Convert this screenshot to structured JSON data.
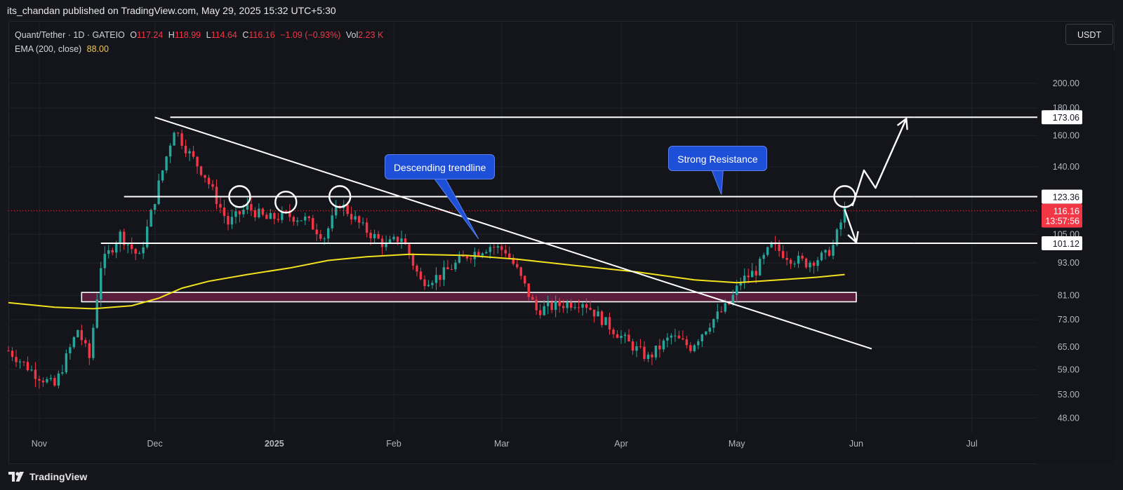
{
  "header": {
    "published": "its_chandan published on TradingView.com, May 29, 2025 15:32 UTC+5:30"
  },
  "legend": {
    "symbol": "Quant/Tether · 1D · GATEIO",
    "o_label": "O",
    "o": "117.24",
    "h_label": "H",
    "h": "118.99",
    "l_label": "L",
    "l": "114.64",
    "c_label": "C",
    "c": "116.16",
    "change": "−1.09 (−0.93%)",
    "vol_label": "Vol",
    "vol": "2.23 K",
    "ema_label": "EMA (200, close)",
    "ema": "88.00"
  },
  "currency_button": "USDT",
  "footer": {
    "brand": "TradingView"
  },
  "colors": {
    "up": "#26a69a",
    "down": "#f23645",
    "ema": "#f2e21d",
    "callout": "#1e4fd8",
    "zone": "#5a1e3c"
  },
  "chart_data": {
    "type": "candlestick",
    "title": "Quant/Tether · 1D · GATEIO",
    "y_scale": "log",
    "ylim": [
      45,
      230
    ],
    "xlim": [
      "2024-10-24",
      "2025-07-18"
    ],
    "y_ticks": [
      "200.00",
      "180.00",
      "160.00",
      "140.00",
      "105.00",
      "93.00",
      "81.00",
      "73.00",
      "65.00",
      "59.00",
      "53.00",
      "48.00"
    ],
    "x_ticks": [
      {
        "label": "Nov",
        "date": "2024-11-01",
        "bold": false
      },
      {
        "label": "Dec",
        "date": "2024-12-01",
        "bold": false
      },
      {
        "label": "2025",
        "date": "2025-01-01",
        "bold": true
      },
      {
        "label": "Feb",
        "date": "2025-02-01",
        "bold": false
      },
      {
        "label": "Mar",
        "date": "2025-03-01",
        "bold": false
      },
      {
        "label": "Apr",
        "date": "2025-04-01",
        "bold": false
      },
      {
        "label": "May",
        "date": "2025-05-01",
        "bold": false
      },
      {
        "label": "Jun",
        "date": "2025-06-01",
        "bold": false
      },
      {
        "label": "Jul",
        "date": "2025-07-01",
        "bold": false
      }
    ],
    "price_badges": [
      {
        "label": "173.06",
        "value": 173.06
      },
      {
        "label": "123.36",
        "value": 123.36
      },
      {
        "label": "101.12",
        "value": 101.12
      }
    ],
    "last_price": {
      "label": "116.16",
      "countdown": "13:57:56",
      "value": 116.16
    },
    "anchor_path": [
      [
        "2024-10-24",
        64
      ],
      [
        "2024-10-31",
        58
      ],
      [
        "2024-11-05",
        55
      ],
      [
        "2024-11-11",
        70
      ],
      [
        "2024-11-14",
        62
      ],
      [
        "2024-11-17",
        92
      ],
      [
        "2024-11-22",
        105
      ],
      [
        "2024-11-27",
        95
      ],
      [
        "2024-12-02",
        130
      ],
      [
        "2024-12-06",
        165
      ],
      [
        "2024-12-10",
        148
      ],
      [
        "2024-12-14",
        135
      ],
      [
        "2024-12-20",
        110
      ],
      [
        "2024-12-25",
        118
      ],
      [
        "2024-12-30",
        112
      ],
      [
        "2025-01-04",
        114
      ],
      [
        "2025-01-09",
        112
      ],
      [
        "2025-01-14",
        104
      ],
      [
        "2025-01-18",
        120
      ],
      [
        "2025-01-24",
        108
      ],
      [
        "2025-01-30",
        100
      ],
      [
        "2025-02-03",
        104
      ],
      [
        "2025-02-08",
        86
      ],
      [
        "2025-02-13",
        88
      ],
      [
        "2025-02-20",
        96
      ],
      [
        "2025-02-26",
        100
      ],
      [
        "2025-03-02",
        98
      ],
      [
        "2025-03-05",
        90
      ],
      [
        "2025-03-10",
        76
      ],
      [
        "2025-03-17",
        78
      ],
      [
        "2025-03-22",
        79
      ],
      [
        "2025-03-28",
        72
      ],
      [
        "2025-04-03",
        66
      ],
      [
        "2025-04-08",
        62
      ],
      [
        "2025-04-14",
        68
      ],
      [
        "2025-04-19",
        65
      ],
      [
        "2025-04-24",
        72
      ],
      [
        "2025-04-29",
        78
      ],
      [
        "2025-05-02",
        86
      ],
      [
        "2025-05-06",
        90
      ],
      [
        "2025-05-10",
        100
      ],
      [
        "2025-05-15",
        95
      ],
      [
        "2025-05-19",
        93
      ],
      [
        "2025-05-24",
        96
      ],
      [
        "2025-05-26",
        100
      ],
      [
        "2025-05-29",
        116
      ]
    ],
    "ema_200": [
      [
        "2024-10-24",
        78.5
      ],
      [
        "2024-11-05",
        77.0
      ],
      [
        "2024-11-15",
        76.5
      ],
      [
        "2024-11-25",
        77.5
      ],
      [
        "2024-12-02",
        80
      ],
      [
        "2024-12-08",
        83.5
      ],
      [
        "2024-12-15",
        86
      ],
      [
        "2024-12-25",
        88.5
      ],
      [
        "2025-01-05",
        91
      ],
      [
        "2025-01-15",
        94
      ],
      [
        "2025-01-25",
        95.5
      ],
      [
        "2025-02-05",
        96.5
      ],
      [
        "2025-02-20",
        96
      ],
      [
        "2025-03-05",
        94.5
      ],
      [
        "2025-03-20",
        92
      ],
      [
        "2025-04-05",
        89.5
      ],
      [
        "2025-04-20",
        86.5
      ],
      [
        "2025-05-01",
        85.5
      ],
      [
        "2025-05-12",
        86.5
      ],
      [
        "2025-05-22",
        87.5
      ],
      [
        "2025-05-29",
        88.5
      ]
    ],
    "annotations": {
      "horizontal_levels": [
        {
          "value": 173.06,
          "from": "2024-12-05",
          "to": "2025-06-16"
        },
        {
          "value": 123.36,
          "from": "2024-11-23",
          "to": "2025-06-16"
        },
        {
          "value": 101.12,
          "from": "2024-11-17",
          "to": "2025-06-16"
        }
      ],
      "support_zone": {
        "from": "2024-11-12",
        "to": "2025-06-01",
        "low": 78.8,
        "high": 82.0
      },
      "descending_trendline": {
        "from": [
          "2024-12-01",
          173
        ],
        "to": [
          "2025-06-05",
          64.5
        ]
      },
      "resistance_touches": [
        {
          "date": "2024-12-23",
          "value": 123.4
        },
        {
          "date": "2025-01-04",
          "value": 120.5
        },
        {
          "date": "2025-01-18",
          "value": 123.4
        },
        {
          "date": "2025-05-29",
          "value": 123.4
        }
      ],
      "callouts": [
        {
          "text": "Descending trendline",
          "date": "2025-02-13",
          "value": 140,
          "pointer_date": "2025-02-23",
          "pointer_value": 103
        },
        {
          "text": "Strong Resistance",
          "date": "2025-04-26",
          "value": 145,
          "pointer_date": "2025-04-27",
          "pointer_value": 124.5
        }
      ],
      "projection_up": [
        [
          "2025-05-31",
          118.5
        ],
        [
          "2025-06-03",
          138
        ],
        [
          "2025-06-06",
          128
        ],
        [
          "2025-06-14",
          172
        ]
      ],
      "projection_down": [
        [
          "2025-05-29",
          116.8
        ],
        [
          "2025-06-01",
          101.5
        ]
      ]
    }
  }
}
